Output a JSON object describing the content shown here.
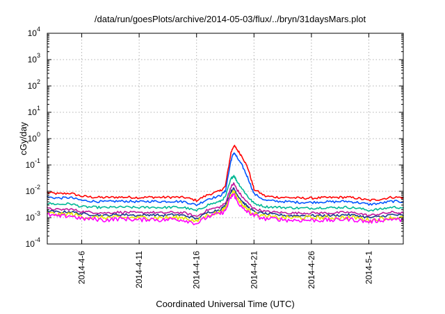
{
  "chart_data": {
    "type": "line",
    "title": "/data/run/goesPlots/archive/2014-05-03/flux/../bryn/31daysMars.plot",
    "xlabel": "Coordinated Universal Time (UTC)",
    "ylabel": "cGy/day",
    "xlim": [
      "2014-04-03",
      "2014-05-04"
    ],
    "ylim": [
      0.0001,
      10000
    ],
    "yscale": "log",
    "grid": true,
    "x_tick_labels": [
      "2014-4-6",
      "2014-4-11",
      "2014-4-16",
      "2014-4-21",
      "2014-4-26",
      "2014-5-1"
    ],
    "x_tick_dates": [
      "2014-04-06",
      "2014-04-11",
      "2014-04-16",
      "2014-04-21",
      "2014-04-26",
      "2014-05-01"
    ],
    "y_tick_labels": [
      {
        "base": "10",
        "exp": "-4"
      },
      {
        "base": "10",
        "exp": "-3"
      },
      {
        "base": "10",
        "exp": "-2"
      },
      {
        "base": "10",
        "exp": "-1"
      },
      {
        "base": "10",
        "exp": "0"
      },
      {
        "base": "10",
        "exp": "1"
      },
      {
        "base": "10",
        "exp": "2"
      },
      {
        "base": "10",
        "exp": "3"
      },
      {
        "base": "10",
        "exp": "4"
      }
    ],
    "y_tick_values": [
      0.0001,
      0.001,
      0.01,
      0.1,
      1,
      10,
      100,
      1000,
      10000
    ],
    "x": [
      "2014-04-03",
      "2014-04-04",
      "2014-04-05",
      "2014-04-06",
      "2014-04-07",
      "2014-04-08",
      "2014-04-09",
      "2014-04-10",
      "2014-04-11",
      "2014-04-12",
      "2014-04-13",
      "2014-04-14",
      "2014-04-15",
      "2014-04-16",
      "2014-04-17",
      "2014-04-18",
      "2014-04-18 12:00",
      "2014-04-19",
      "2014-04-19 06:00",
      "2014-04-19 12:00",
      "2014-04-20",
      "2014-04-20 12:00",
      "2014-04-21",
      "2014-04-22",
      "2014-04-23",
      "2014-04-24",
      "2014-04-25",
      "2014-04-26",
      "2014-04-27",
      "2014-04-28",
      "2014-04-29",
      "2014-04-30",
      "2014-05-01",
      "2014-05-02",
      "2014-05-03",
      "2014-05-04"
    ],
    "series": [
      {
        "color": "#ff0000",
        "values": [
          0.009,
          0.008,
          0.0085,
          0.0065,
          0.006,
          0.0058,
          0.006,
          0.006,
          0.0058,
          0.006,
          0.0059,
          0.006,
          0.0058,
          0.0045,
          0.0075,
          0.01,
          0.015,
          0.3,
          0.55,
          0.4,
          0.2,
          0.07,
          0.012,
          0.0065,
          0.006,
          0.0058,
          0.0055,
          0.0055,
          0.0057,
          0.0058,
          0.006,
          0.0055,
          0.0045,
          0.005,
          0.006,
          0.0058
        ]
      },
      {
        "color": "#0055ff",
        "values": [
          0.006,
          0.0055,
          0.0058,
          0.0045,
          0.0042,
          0.004,
          0.0042,
          0.0042,
          0.004,
          0.0042,
          0.0041,
          0.0042,
          0.004,
          0.003,
          0.0052,
          0.0065,
          0.01,
          0.15,
          0.3,
          0.2,
          0.09,
          0.03,
          0.008,
          0.0045,
          0.0042,
          0.004,
          0.0038,
          0.0038,
          0.004,
          0.004,
          0.0042,
          0.0038,
          0.0032,
          0.0035,
          0.0042,
          0.004
        ]
      },
      {
        "color": "#00b894",
        "values": [
          0.0035,
          0.0032,
          0.0034,
          0.0026,
          0.0025,
          0.0024,
          0.0025,
          0.0025,
          0.0024,
          0.0025,
          0.0024,
          0.0025,
          0.0024,
          0.0018,
          0.0031,
          0.004,
          0.006,
          0.03,
          0.04,
          0.025,
          0.012,
          0.006,
          0.0035,
          0.0026,
          0.0025,
          0.0024,
          0.0023,
          0.0023,
          0.0024,
          0.0024,
          0.0025,
          0.0023,
          0.0019,
          0.0021,
          0.0025,
          0.0024
        ]
      },
      {
        "color": "#c0179c",
        "values": [
          0.0022,
          0.002,
          0.0021,
          0.0017,
          0.0016,
          0.0015,
          0.0016,
          0.0016,
          0.0015,
          0.0016,
          0.0015,
          0.0016,
          0.0015,
          0.0011,
          0.002,
          0.0025,
          0.0035,
          0.015,
          0.02,
          0.012,
          0.006,
          0.0035,
          0.0022,
          0.0017,
          0.0016,
          0.0015,
          0.0015,
          0.0015,
          0.0015,
          0.0015,
          0.0016,
          0.0015,
          0.0012,
          0.0014,
          0.0016,
          0.0015
        ]
      },
      {
        "color": "#1a3a8a",
        "values": [
          0.0018,
          0.0016,
          0.0017,
          0.0014,
          0.0013,
          0.0012,
          0.0013,
          0.0013,
          0.0012,
          0.0013,
          0.0012,
          0.0013,
          0.0012,
          0.0009,
          0.0016,
          0.002,
          0.0028,
          0.01,
          0.013,
          0.008,
          0.004,
          0.0025,
          0.0017,
          0.0014,
          0.0013,
          0.0012,
          0.0012,
          0.0012,
          0.0012,
          0.0012,
          0.0013,
          0.0012,
          0.001,
          0.0011,
          0.0013,
          0.0012
        ]
      },
      {
        "color": "#e6e600",
        "values": [
          0.0015,
          0.0013,
          0.0014,
          0.0011,
          0.001,
          0.001,
          0.001,
          0.001,
          0.001,
          0.001,
          0.001,
          0.001,
          0.001,
          0.0007,
          0.0013,
          0.0016,
          0.0022,
          0.008,
          0.01,
          0.006,
          0.003,
          0.002,
          0.0014,
          0.0011,
          0.001,
          0.001,
          0.001,
          0.001,
          0.001,
          0.001,
          0.001,
          0.001,
          0.0008,
          0.0009,
          0.001,
          0.001
        ]
      },
      {
        "color": "#ff00ff",
        "values": [
          0.0013,
          0.0011,
          0.0012,
          0.0009,
          0.0009,
          0.0008,
          0.0009,
          0.0009,
          0.0008,
          0.0009,
          0.0008,
          0.0009,
          0.0008,
          0.0006,
          0.0011,
          0.0014,
          0.0018,
          0.006,
          0.008,
          0.0045,
          0.0022,
          0.0016,
          0.0012,
          0.0009,
          0.0009,
          0.0008,
          0.0008,
          0.0008,
          0.0008,
          0.0008,
          0.0009,
          0.0008,
          0.0007,
          0.0008,
          0.0009,
          0.0008
        ]
      }
    ]
  }
}
